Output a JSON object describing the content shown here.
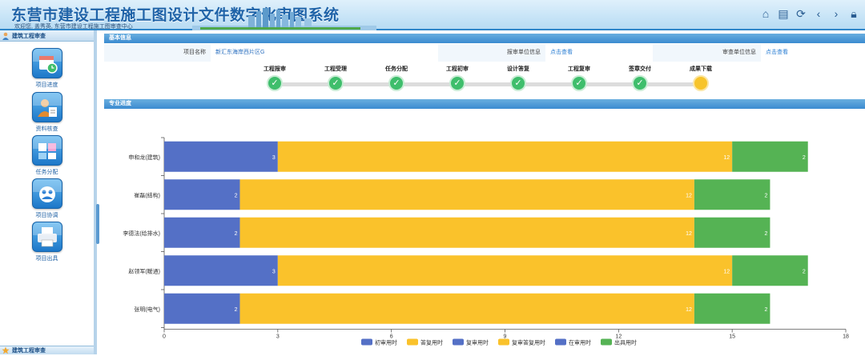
{
  "header": {
    "title": "东营市建设工程施工图设计文件数字化审图系统",
    "welcome": "欢迎您, 盖秀英, 东营市建设工程施工图审查中心",
    "icons": [
      "home-icon",
      "document-icon",
      "refresh-icon",
      "back-icon",
      "forward-icon",
      "lock-icon"
    ]
  },
  "sidebar": {
    "header": "建筑工程审查",
    "items": [
      {
        "label": "项目进度",
        "icon": "calendar-clock-icon"
      },
      {
        "label": "资料核查",
        "icon": "person-review-icon"
      },
      {
        "label": "任务分配",
        "icon": "task-assign-icon"
      },
      {
        "label": "项目协调",
        "icon": "coordination-icon"
      },
      {
        "label": "项目出具",
        "icon": "printer-icon"
      }
    ],
    "footer": "建筑工程审查"
  },
  "basic_info": {
    "section_title": "基本信息",
    "project_label": "项目名称",
    "project_value": "新汇东海岸西片区G",
    "submit_unit_label": "报审单位信息",
    "submit_unit_link": "点击查看",
    "review_unit_label": "审查单位信息",
    "review_unit_link": "点击查看"
  },
  "steps": [
    {
      "label": "工程报审",
      "done": true
    },
    {
      "label": "工程受理",
      "done": true
    },
    {
      "label": "任务分配",
      "done": true
    },
    {
      "label": "工程初审",
      "done": true
    },
    {
      "label": "设计答复",
      "done": true
    },
    {
      "label": "工程复审",
      "done": true
    },
    {
      "label": "签章交付",
      "done": true
    },
    {
      "label": "成果下载",
      "done": false
    }
  ],
  "progress": {
    "section_title": "专业进度"
  },
  "colors": {
    "blue": "#5470c6",
    "yellow": "#fac22b",
    "green": "#55b354"
  },
  "chart_data": {
    "type": "bar",
    "orientation": "horizontal",
    "stacked": true,
    "categories": [
      "申和龙(建筑)",
      "崔磊(结构)",
      "李德法(给排水)",
      "赵领军(暖通)",
      "张明(电气)"
    ],
    "series": [
      {
        "name": "初审用时",
        "color": "#5470c6",
        "values": [
          3,
          2,
          2,
          3,
          2
        ]
      },
      {
        "name": "答复用时",
        "color": "#fac22b",
        "values": [
          12,
          12,
          12,
          12,
          12
        ]
      },
      {
        "name": "复审用时",
        "color": "#5470c6",
        "values": [
          0,
          0,
          0,
          0,
          0
        ]
      },
      {
        "name": "复审答复用时",
        "color": "#fac22b",
        "values": [
          0,
          0,
          0,
          0,
          0
        ]
      },
      {
        "name": "在审用时",
        "color": "#5470c6",
        "values": [
          0,
          0,
          0,
          0,
          0
        ]
      },
      {
        "name": "出具用时",
        "color": "#55b354",
        "values": [
          2,
          2,
          2,
          2,
          2
        ]
      }
    ],
    "bar_labels": [
      [
        "3",
        "12",
        "2"
      ],
      [
        "2",
        "12",
        "2"
      ],
      [
        "2",
        "12",
        "2"
      ],
      [
        "3",
        "12",
        "2"
      ],
      [
        "2",
        "12",
        "2"
      ]
    ],
    "xlim": [
      0,
      18
    ],
    "xticks": [
      0,
      3,
      6,
      9,
      12,
      15,
      18
    ],
    "grid": false,
    "legend_position": "bottom"
  }
}
